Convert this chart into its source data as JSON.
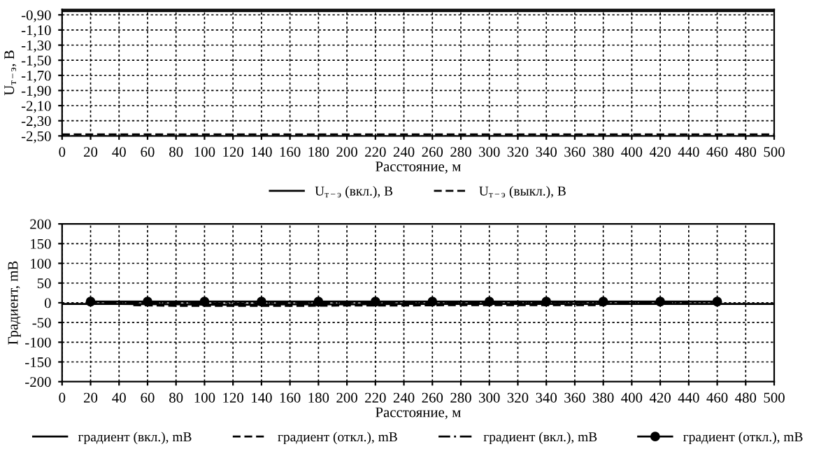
{
  "chart_data": [
    {
      "type": "line",
      "xlabel": "Расстояние, м",
      "ylabel": "U$_{т−э}$, В",
      "x": [
        0,
        40,
        80,
        120,
        160,
        200,
        240,
        280,
        320,
        360,
        400,
        440,
        480,
        500
      ],
      "series": [
        {
          "name": "U$_{т−э}$ (вкл.), В",
          "color": "#000000",
          "line_style": "solid",
          "values": [
            -0.85,
            -0.85,
            -0.85,
            -0.85,
            -0.85,
            -0.85,
            -0.85,
            -0.85,
            -0.85,
            -0.85,
            -0.85,
            -0.85,
            -0.85,
            -0.85
          ]
        },
        {
          "name": "U$_{т−э}$ (выкл.), В",
          "color": "#000000",
          "line_style": "dashed",
          "values": [
            -2.48,
            -2.48,
            -2.48,
            -2.48,
            -2.48,
            -2.48,
            -2.48,
            -2.48,
            -2.48,
            -2.48,
            -2.48,
            -2.48,
            -2.48,
            -2.48
          ]
        }
      ],
      "xlim": [
        0,
        500
      ],
      "xticks": [
        0,
        20,
        40,
        60,
        80,
        100,
        120,
        140,
        160,
        180,
        200,
        220,
        240,
        260,
        280,
        300,
        320,
        340,
        360,
        380,
        400,
        420,
        440,
        460,
        480,
        500
      ],
      "ylim": [
        -2.5,
        -0.83
      ],
      "yticks": [
        {
          "value": -0.9,
          "label": "-0,90"
        },
        {
          "value": -1.1,
          "label": "-1,10"
        },
        {
          "value": -1.3,
          "label": "-1,30"
        },
        {
          "value": -1.5,
          "label": "-1,50"
        },
        {
          "value": -1.7,
          "label": "-1,70"
        },
        {
          "value": -1.9,
          "label": "-1,90"
        },
        {
          "value": -2.1,
          "label": "-2,10"
        },
        {
          "value": -2.3,
          "label": "-2,30"
        },
        {
          "value": -2.5,
          "label": "-2,50"
        }
      ],
      "grid": true,
      "legend": "bottom"
    },
    {
      "type": "line",
      "xlabel": "Расстояние, м",
      "ylabel": "Градиент, mВ",
      "x": [
        0,
        40,
        80,
        120,
        160,
        200,
        240,
        280,
        320,
        360,
        400,
        440,
        480,
        500
      ],
      "series": [
        {
          "name": "градиент (вкл.), mВ",
          "color": "#000000",
          "line_style": "solid",
          "values": [
            -3,
            -3,
            -4,
            -5,
            -4,
            -4,
            -3,
            -3,
            -3,
            -3,
            -3,
            -3,
            -3,
            -3
          ]
        },
        {
          "name": "градиент (откл.), mВ",
          "color": "#000000",
          "line_style": "dashed",
          "x": [
            50,
            80,
            120,
            160,
            200,
            240,
            280,
            320,
            380
          ],
          "values": [
            -6,
            -8,
            -8,
            -8,
            -7,
            -7,
            -6,
            -6,
            -6
          ]
        },
        {
          "name": "градиент (вкл.), mВ",
          "color": "#000000",
          "line_style": "dashdot",
          "x": [
            30,
            80,
            120,
            160,
            200,
            240,
            280,
            320,
            360,
            400,
            440
          ],
          "values": [
            0,
            0,
            -2,
            0,
            0,
            0,
            0,
            0,
            2,
            0,
            0
          ]
        },
        {
          "name": "градиент (откл.), mВ",
          "color": "#000000",
          "line_style": "solid",
          "marker": "circle",
          "x": [
            20,
            60,
            100,
            140,
            180,
            220,
            260,
            300,
            340,
            380,
            420,
            460
          ],
          "values": [
            3,
            3,
            3,
            3,
            3,
            3,
            3,
            3,
            3,
            3,
            3,
            3
          ]
        }
      ],
      "xlim": [
        0,
        500
      ],
      "xticks": [
        0,
        20,
        40,
        60,
        80,
        100,
        120,
        140,
        160,
        180,
        200,
        220,
        240,
        260,
        280,
        300,
        320,
        340,
        360,
        380,
        400,
        420,
        440,
        460,
        480,
        500
      ],
      "ylim": [
        -200,
        200
      ],
      "yticks": [
        -200,
        -150,
        -100,
        -50,
        0,
        50,
        100,
        150,
        200
      ],
      "grid": true,
      "legend": "bottom"
    }
  ]
}
